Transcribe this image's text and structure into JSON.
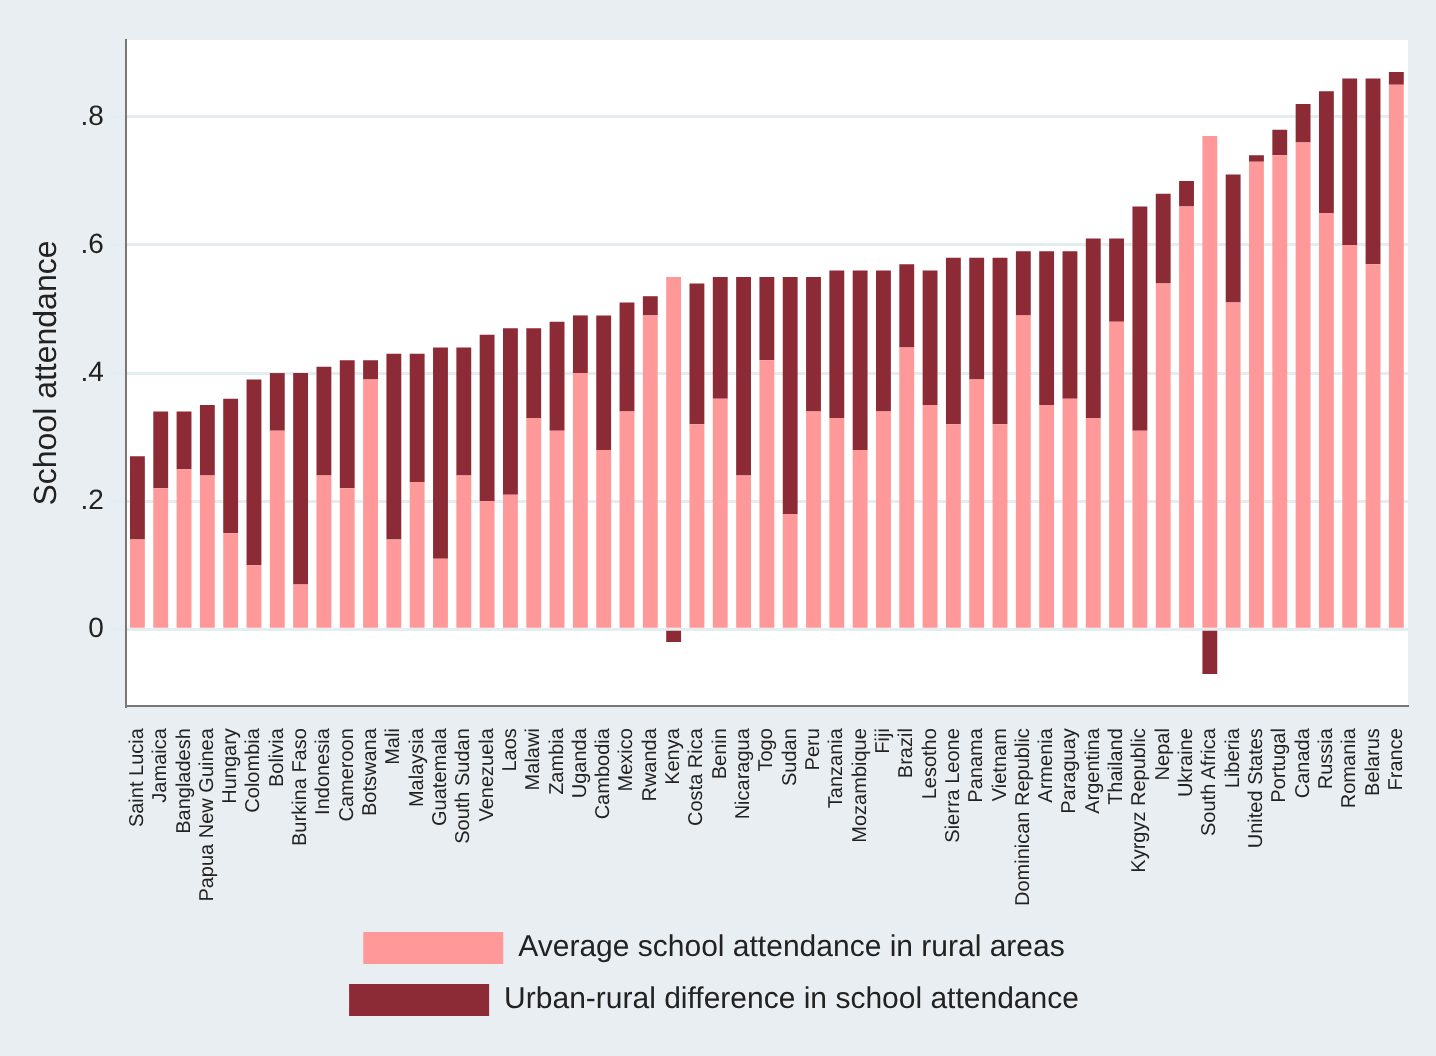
{
  "chart_data": {
    "type": "bar",
    "stacked": true,
    "ylabel": "School attendance",
    "categories": [
      "Saint Lucia",
      "Jamaica",
      "Bangladesh",
      "Papua New Guinea",
      "Hungary",
      "Colombia",
      "Bolivia",
      "Burkina Faso",
      "Indonesia",
      "Cameroon",
      "Botswana",
      "Mali",
      "Malaysia",
      "Guatemala",
      "South Sudan",
      "Venezuela",
      "Laos",
      "Malawi",
      "Zambia",
      "Uganda",
      "Cambodia",
      "Mexico",
      "Rwanda",
      "Kenya",
      "Costa Rica",
      "Benin",
      "Nicaragua",
      "Togo",
      "Sudan",
      "Peru",
      "Tanzania",
      "Mozambique",
      "Fiji",
      "Brazil",
      "Lesotho",
      "Sierra Leone",
      "Panama",
      "Vietnam",
      "Dominican Republic",
      "Armenia",
      "Paraguay",
      "Argentina",
      "Thailand",
      "Kyrgyz Republic",
      "Nepal",
      "Ukraine",
      "South Africa",
      "Liberia",
      "United States",
      "Portugal",
      "Canada",
      "Russia",
      "Romania",
      "Belarus",
      "France"
    ],
    "series": [
      {
        "name": "Average school attendance in rural areas",
        "color": "#ff9999",
        "values": [
          0.14,
          0.22,
          0.25,
          0.24,
          0.15,
          0.1,
          0.31,
          0.07,
          0.24,
          0.22,
          0.39,
          0.14,
          0.23,
          0.11,
          0.24,
          0.2,
          0.21,
          0.33,
          0.31,
          0.4,
          0.28,
          0.34,
          0.49,
          0.55,
          0.32,
          0.36,
          0.24,
          0.42,
          0.18,
          0.34,
          0.33,
          0.28,
          0.34,
          0.44,
          0.35,
          0.32,
          0.39,
          0.32,
          0.49,
          0.35,
          0.36,
          0.33,
          0.48,
          0.31,
          0.54,
          0.66,
          0.77,
          0.51,
          0.73,
          0.74,
          0.76,
          0.65,
          0.6,
          0.57,
          0.85
        ]
      },
      {
        "name": "Urban-rural difference in school attendance",
        "color": "#8c2a35",
        "values": [
          0.13,
          0.12,
          0.09,
          0.11,
          0.21,
          0.29,
          0.09,
          0.33,
          0.17,
          0.2,
          0.03,
          0.29,
          0.2,
          0.33,
          0.2,
          0.26,
          0.26,
          0.14,
          0.17,
          0.09,
          0.21,
          0.17,
          0.03,
          -0.02,
          0.22,
          0.19,
          0.31,
          0.13,
          0.37,
          0.21,
          0.23,
          0.28,
          0.22,
          0.13,
          0.21,
          0.26,
          0.19,
          0.26,
          0.1,
          0.24,
          0.23,
          0.28,
          0.13,
          0.35,
          0.14,
          0.04,
          -0.07,
          0.2,
          0.01,
          0.04,
          0.06,
          0.19,
          0.26,
          0.29,
          0.02
        ]
      }
    ],
    "ylim": [
      -0.12,
      0.92
    ],
    "yticks": [
      {
        "value": 0,
        "label": "0"
      },
      {
        "value": 0.2,
        "label": ".2"
      },
      {
        "value": 0.4,
        "label": ".4"
      },
      {
        "value": 0.6,
        "label": ".6"
      },
      {
        "value": 0.8,
        "label": ".8"
      }
    ],
    "grid": "y",
    "legend": "bottom"
  }
}
